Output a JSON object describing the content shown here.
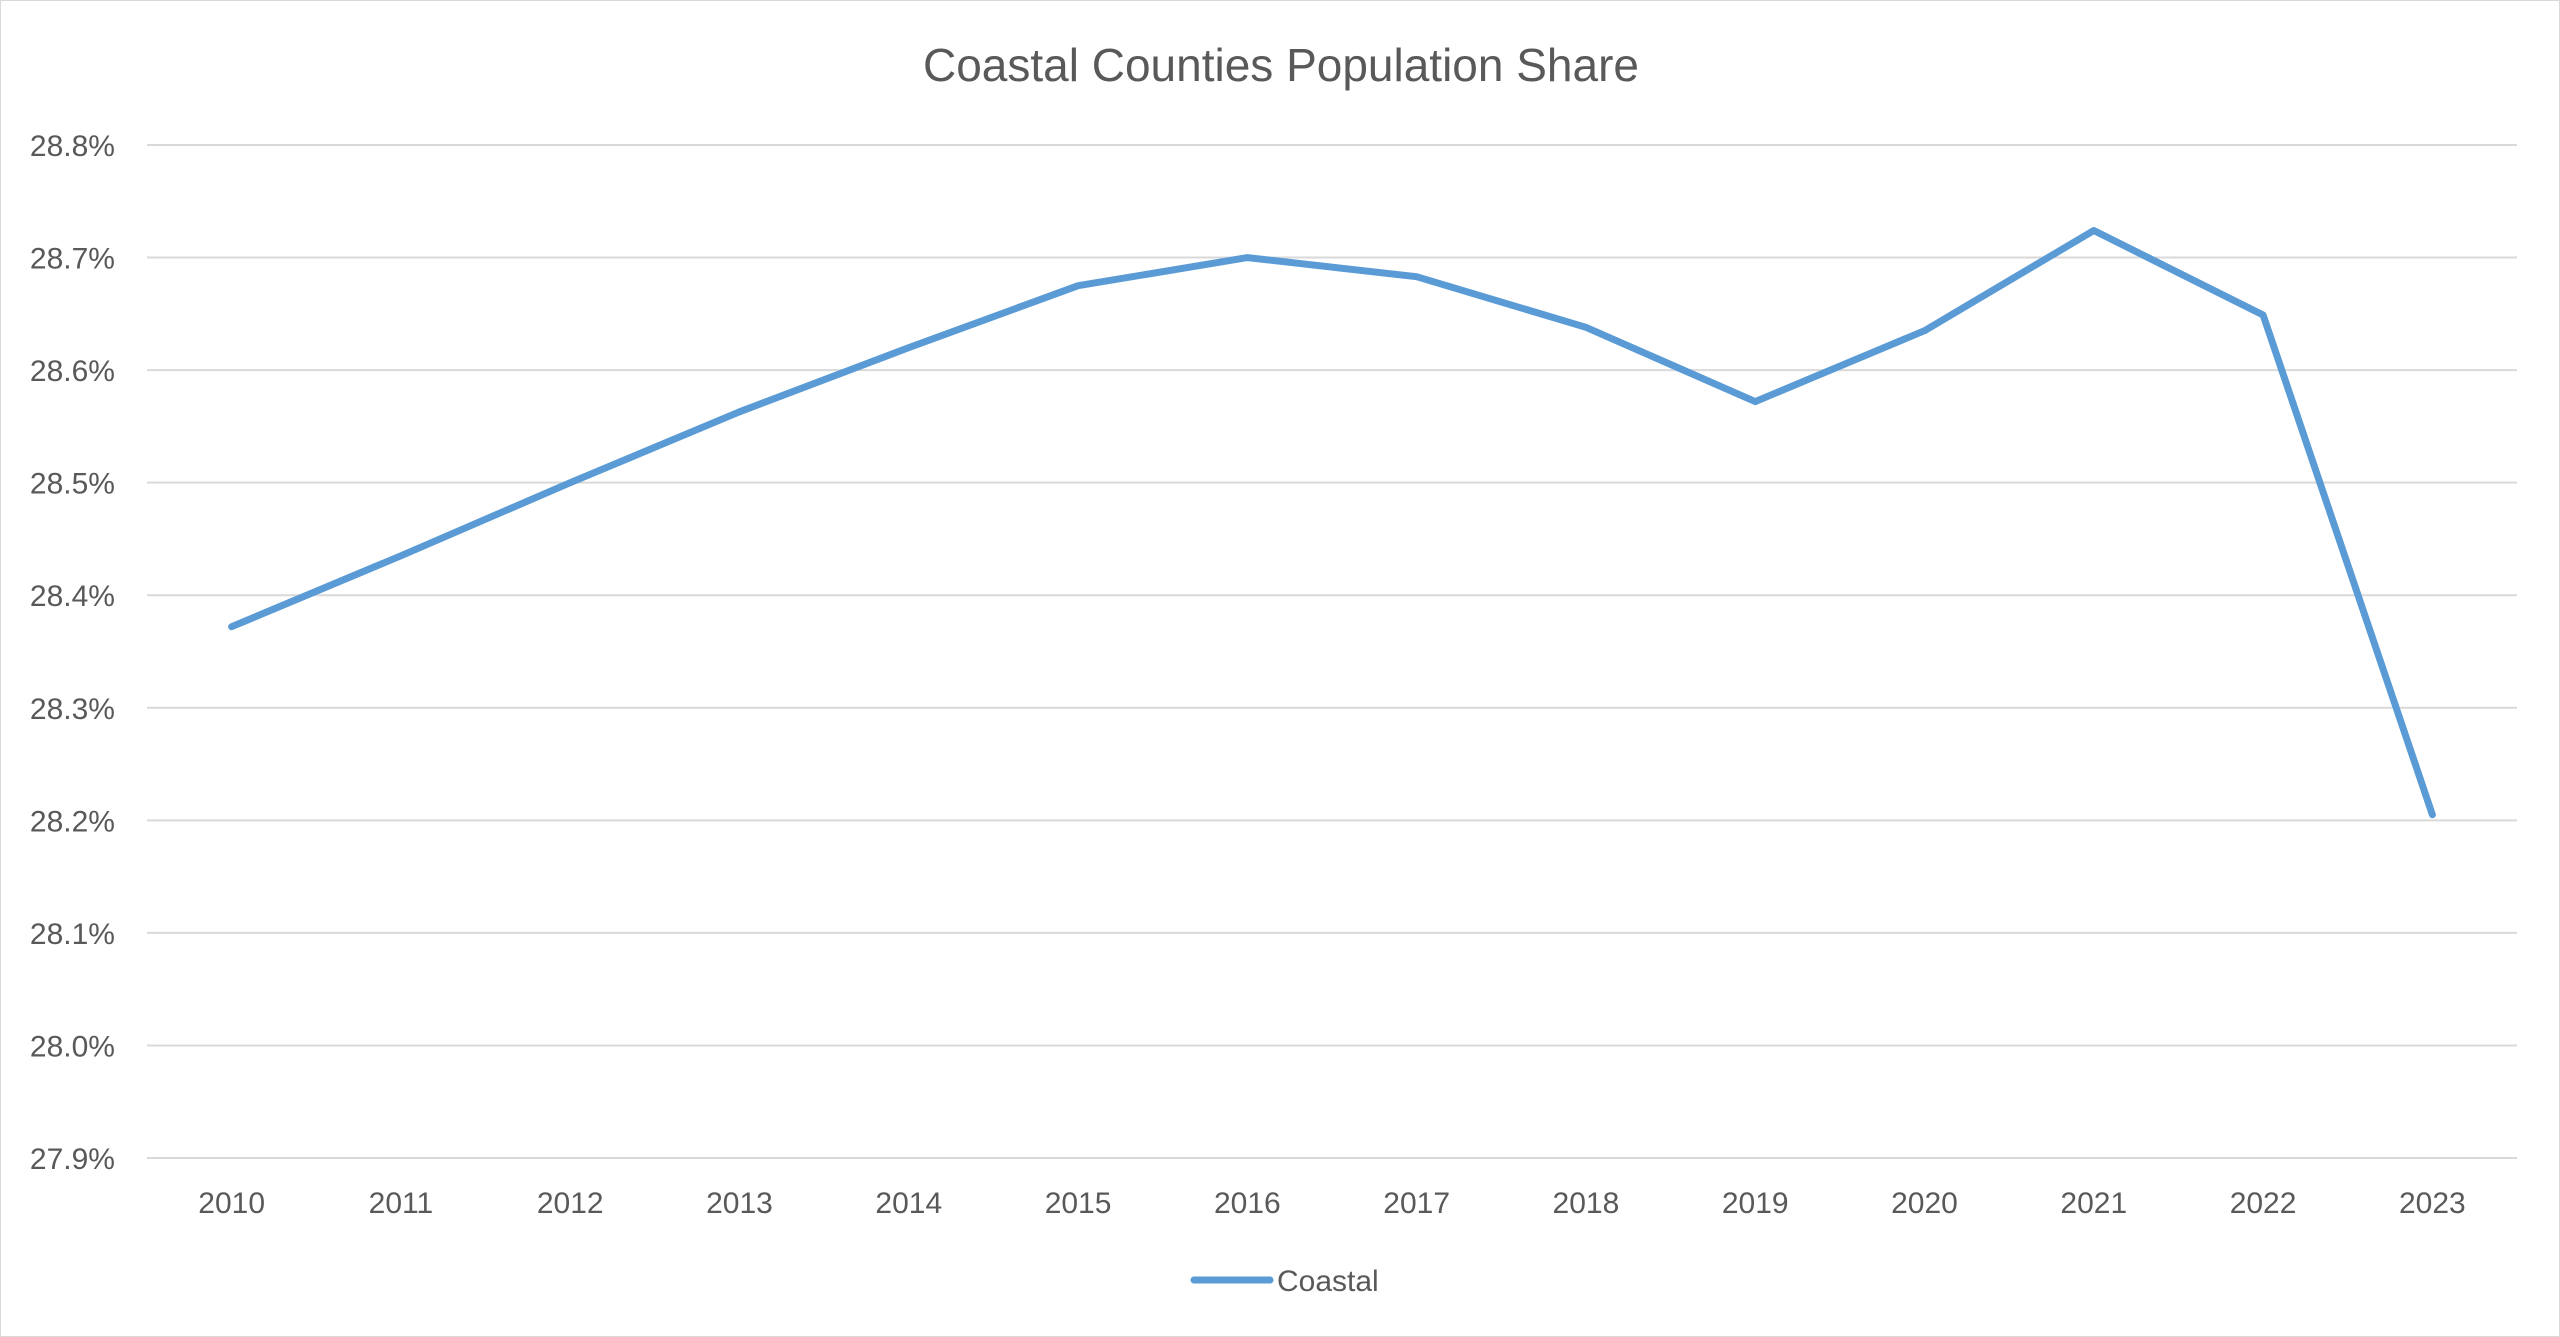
{
  "chart_data": {
    "type": "line",
    "title": "Coastal Counties Population Share",
    "xlabel": "",
    "ylabel": "",
    "categories": [
      "2010",
      "2011",
      "2012",
      "2013",
      "2014",
      "2015",
      "2016",
      "2017",
      "2018",
      "2019",
      "2020",
      "2021",
      "2022",
      "2023"
    ],
    "series": [
      {
        "name": "Coastal",
        "color": "#5b9bd5",
        "values": [
          28.372,
          28.435,
          28.5,
          28.563,
          28.62,
          28.675,
          28.7,
          28.683,
          28.638,
          28.572,
          28.635,
          28.724,
          28.649,
          28.205
        ]
      }
    ],
    "ylim": [
      27.9,
      28.8
    ],
    "yticks": [
      "28.8%",
      "28.7%",
      "28.6%",
      "28.5%",
      "28.4%",
      "28.3%",
      "28.2%",
      "28.1%",
      "28.0%",
      "27.9%"
    ],
    "ytick_values": [
      28.8,
      28.7,
      28.6,
      28.5,
      28.4,
      28.3,
      28.2,
      28.1,
      28.0,
      27.9
    ],
    "grid": true,
    "legend_position": "bottom",
    "gridline_color": "#d9d9d9",
    "text_color": "#595959"
  }
}
